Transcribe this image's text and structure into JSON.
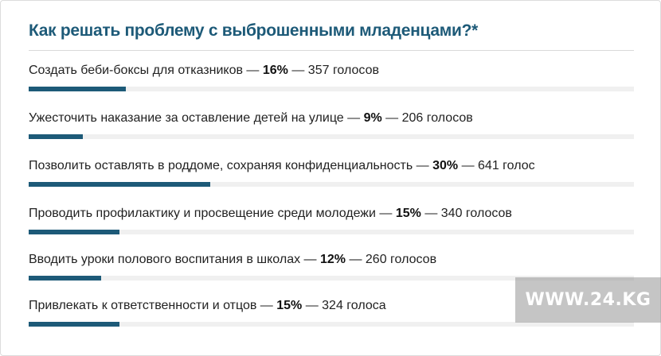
{
  "poll": {
    "title": "Как решать проблему с выброшенными младенцами?*",
    "bar_color": "#1d5a78",
    "options": [
      {
        "label": "Создать беби-боксы для отказников",
        "sep1": " — ",
        "percent": "16%",
        "sep2": " — ",
        "votes": "357 голосов",
        "fraction": 0.16
      },
      {
        "label": "Ужесточить наказание за оставление детей на улице",
        "sep1": " — ",
        "percent": "9%",
        "sep2": " — ",
        "votes": "206 голосов",
        "fraction": 0.09
      },
      {
        "label": "Позволить оставлять в роддоме, сохраняя конфиденциальность",
        "sep1": " — ",
        "percent": "30%",
        "sep2": " — ",
        "votes": "641 голос",
        "fraction": 0.3
      },
      {
        "label": "Проводить профилактику и просвещение среди молодежи",
        "sep1": " — ",
        "percent": "15%",
        "sep2": " — ",
        "votes": "340 голосов",
        "fraction": 0.15
      },
      {
        "label": "Вводить уроки полового воспитания в школах",
        "sep1": " — ",
        "percent": "12%",
        "sep2": " — ",
        "votes": "260 голосов",
        "fraction": 0.12
      },
      {
        "label": "Привлекать к ответственности и отцов",
        "sep1": " — ",
        "percent": "15%",
        "sep2": " — ",
        "votes": "324 голоса",
        "fraction": 0.15
      }
    ]
  },
  "watermark": {
    "text": "WWW.24.KG"
  }
}
